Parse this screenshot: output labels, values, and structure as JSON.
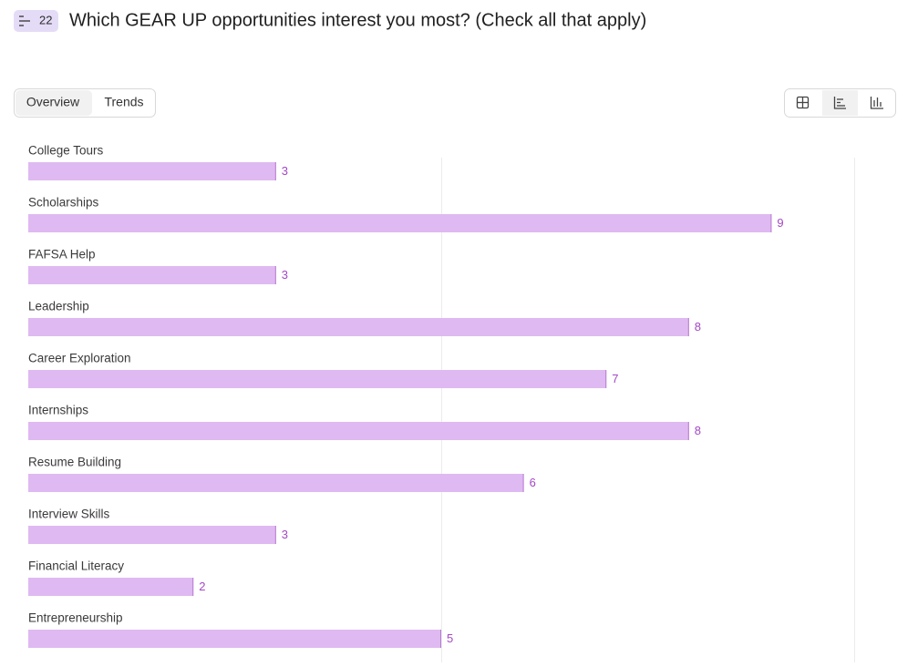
{
  "header": {
    "badge": "22",
    "title": "Which GEAR UP opportunities interest you most? (Check all that apply)"
  },
  "tabs": [
    "Overview",
    "Trends"
  ],
  "chart_data": {
    "type": "bar",
    "orientation": "horizontal",
    "categories": [
      "College Tours",
      "Scholarships",
      "FAFSA Help",
      "Leadership",
      "Career Exploration",
      "Internships",
      "Resume Building",
      "Interview Skills",
      "Financial Literacy",
      "Entrepreneurship"
    ],
    "values": [
      3,
      9,
      3,
      8,
      7,
      8,
      6,
      3,
      2,
      5
    ],
    "color": "#dfb9f1",
    "xlim": [
      0,
      10
    ],
    "xticks": [
      5,
      10
    ],
    "grid": true
  }
}
